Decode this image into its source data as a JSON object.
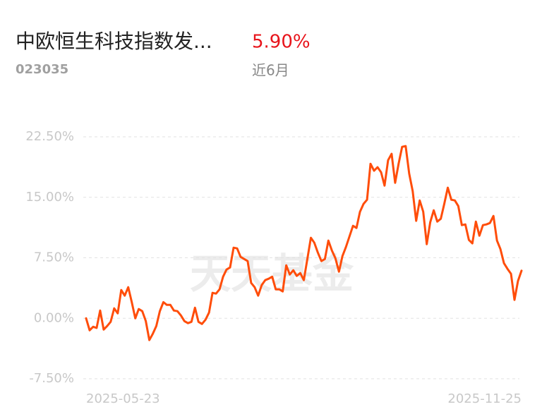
{
  "chart_data": {
    "type": "line",
    "title": "中欧恒生科技指数发...",
    "code": "023035",
    "period": "近6月",
    "period_return": {
      "value": 5.9,
      "label": "5.90%"
    },
    "watermark": "天天基金",
    "categories": [
      "2025-05-23",
      null,
      null,
      null,
      null,
      null,
      null,
      null,
      null,
      null,
      null,
      null,
      null,
      null,
      null,
      null,
      null,
      null,
      null,
      null,
      null,
      null,
      null,
      null,
      null,
      null,
      null,
      null,
      null,
      null,
      null,
      null,
      null,
      null,
      null,
      null,
      null,
      null,
      null,
      null,
      null,
      null,
      null,
      null,
      null,
      null,
      null,
      null,
      null,
      null,
      null,
      null,
      null,
      null,
      null,
      null,
      null,
      null,
      null,
      null,
      null,
      null,
      null,
      null,
      null,
      null,
      null,
      null,
      null,
      null,
      null,
      null,
      null,
      null,
      null,
      null,
      null,
      null,
      null,
      null,
      null,
      null,
      null,
      null,
      null,
      null,
      null,
      null,
      null,
      null,
      null,
      null,
      null,
      null,
      null,
      null,
      null,
      null,
      null,
      null,
      null,
      null,
      null,
      null,
      null,
      null,
      null,
      null,
      null,
      null,
      null,
      null,
      null,
      null,
      null,
      null,
      null,
      null,
      null,
      null,
      null,
      null,
      null,
      null,
      "2025-11-25"
    ],
    "series": [
      {
        "color": "#ff4d0a",
        "values": [
          0,
          -1.49,
          -1.05,
          -1.2,
          0.96,
          -1.4,
          -0.96,
          -0.44,
          1.23,
          0.61,
          3.5,
          2.8,
          3.85,
          2.0,
          0,
          1.14,
          0.88,
          -0.35,
          -2.71,
          -1.93,
          -0.96,
          0.88,
          2.0,
          1.66,
          1.66,
          0.96,
          0.88,
          0.35,
          -0.35,
          -0.61,
          -0.44,
          1.31,
          -0.44,
          -0.7,
          -0.18,
          0.7,
          3.15,
          3.06,
          3.59,
          5.16,
          6.04,
          6.3,
          8.75,
          8.66,
          7.61,
          7.35,
          7.09,
          4.38,
          3.85,
          2.8,
          4.11,
          4.73,
          4.9,
          5.16,
          3.59,
          3.59,
          3.33,
          6.56,
          5.43,
          5.95,
          5.25,
          5.6,
          4.73,
          7.35,
          9.98,
          9.36,
          8.14,
          7.09,
          7.35,
          9.63,
          8.4,
          7.44,
          5.78,
          7.7,
          8.84,
          10.15,
          11.46,
          11.2,
          13.21,
          14.18,
          14.7,
          19.16,
          18.29,
          18.73,
          18.11,
          16.45,
          19.6,
          20.39,
          16.8,
          19.16,
          21.26,
          21.35,
          17.94,
          15.75,
          12.08,
          14.61,
          13.21,
          9.19,
          11.9,
          13.39,
          11.99,
          12.34,
          14.18,
          16.19,
          14.7,
          14.61,
          13.91,
          11.55,
          11.64,
          9.71,
          9.28,
          11.99,
          10.24,
          11.55,
          11.64,
          11.81,
          12.69,
          9.63,
          8.58,
          6.83,
          6.13,
          5.51,
          2.28,
          4.64,
          5.9
        ]
      }
    ],
    "ylim": [
      -7.5,
      22.5
    ],
    "yticks": [
      {
        "value": 22.5,
        "label": "22.50%"
      },
      {
        "value": 15,
        "label": "15.00%"
      },
      {
        "value": 7.5,
        "label": "7.50%"
      },
      {
        "value": 0,
        "label": "0.00%"
      },
      {
        "value": -7.5,
        "label": "-7.50%"
      }
    ],
    "grid": true
  }
}
